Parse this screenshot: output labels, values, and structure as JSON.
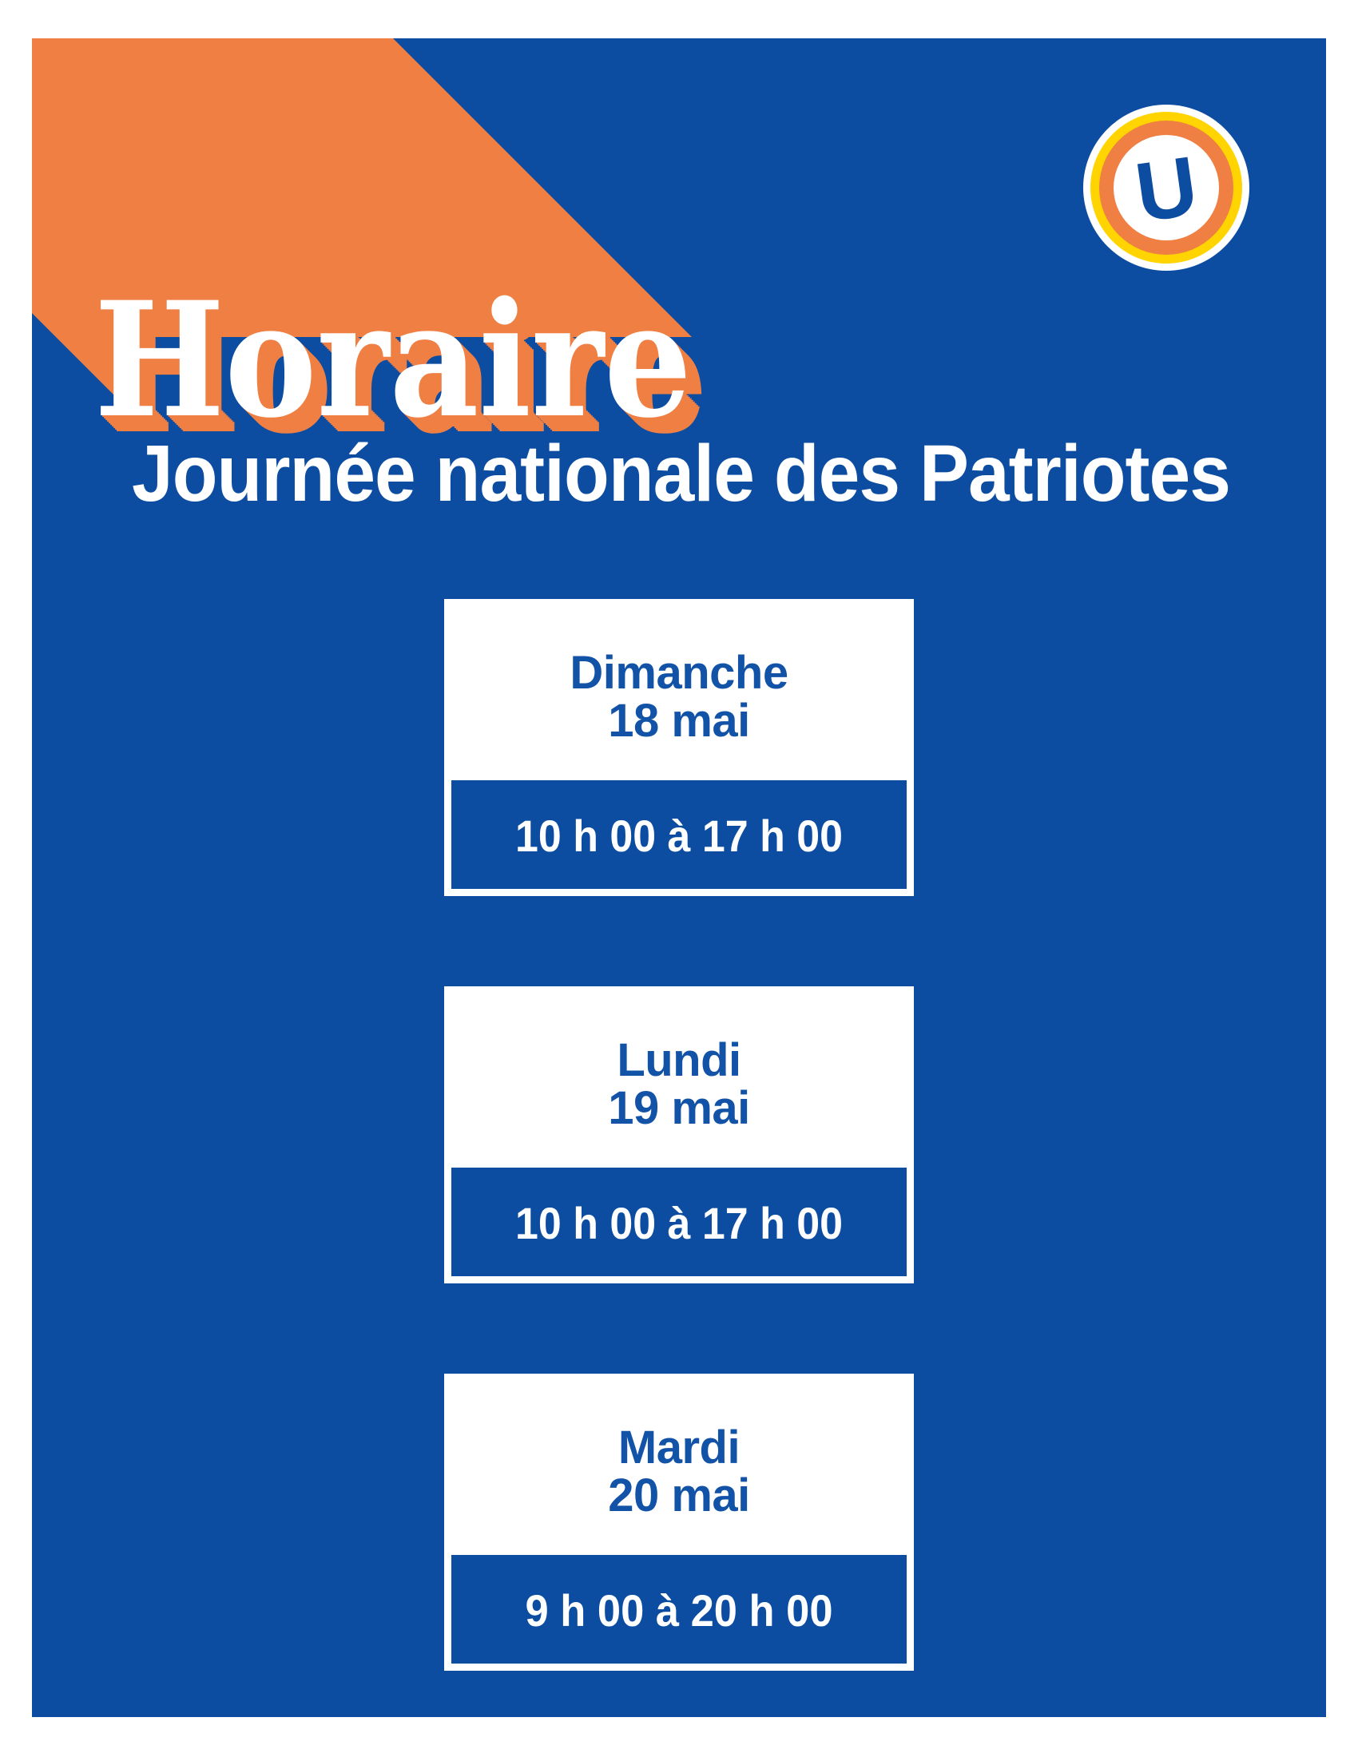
{
  "colors": {
    "blue": "#0C4DA2",
    "orange": "#EF7F43",
    "yellow": "#FFD400",
    "white": "#FFFFFF",
    "day_text": "#1253A8"
  },
  "hero": {
    "title": "Horaire",
    "subtitle": "Journée nationale des Patriotes"
  },
  "logo": {
    "letter": "U"
  },
  "cards": [
    {
      "day": "Dimanche",
      "date": "18 mai",
      "time": "10 h 00 à 17 h 00"
    },
    {
      "day": "Lundi",
      "date": "19 mai",
      "time": "10 h 00 à 17 h 00"
    },
    {
      "day": "Mardi",
      "date": "20 mai",
      "time": "9 h 00 à 20 h 00"
    }
  ]
}
